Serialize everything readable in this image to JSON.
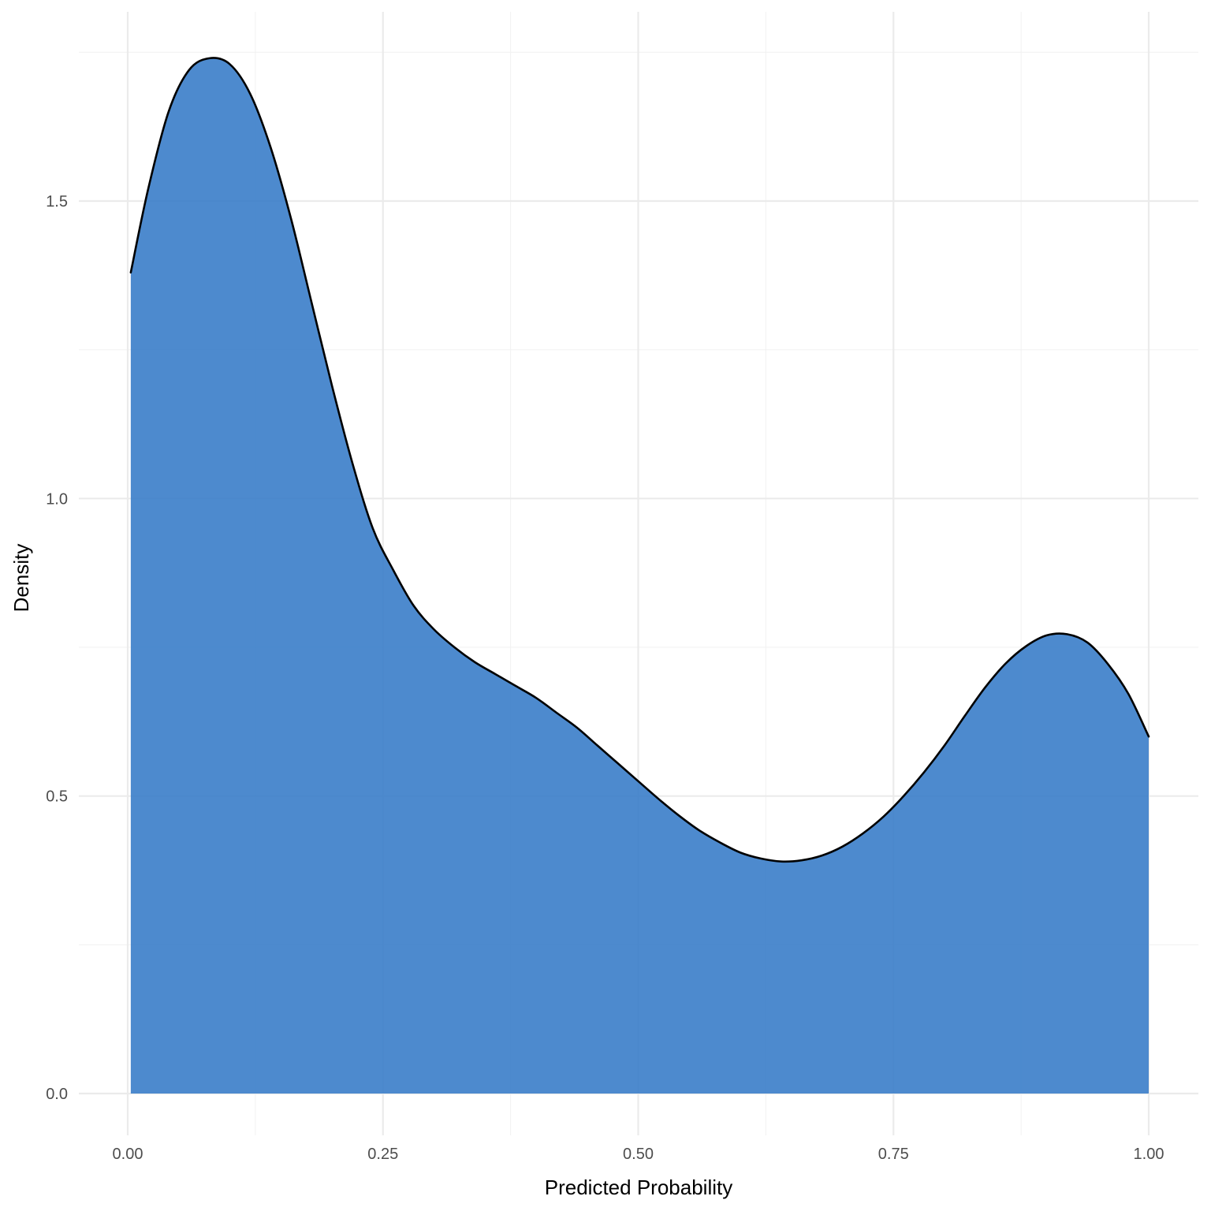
{
  "chart_data": {
    "type": "area",
    "title": "",
    "xlabel": "Predicted Probability",
    "ylabel": "Density",
    "xlim": [
      0.0,
      1.0
    ],
    "ylim": [
      0.0,
      1.75
    ],
    "x_ticks": [
      "0.00",
      "0.25",
      "0.50",
      "0.75",
      "1.00"
    ],
    "y_ticks": [
      "0.0",
      "0.5",
      "1.0",
      "1.5"
    ],
    "grid": true,
    "legend": "none",
    "fill_color": "#3a7dc9",
    "line_color": "#000000",
    "series": [
      {
        "x": [
          0.003,
          0.02,
          0.04,
          0.06,
          0.08,
          0.1,
          0.12,
          0.14,
          0.16,
          0.18,
          0.2,
          0.22,
          0.24,
          0.26,
          0.28,
          0.3,
          0.32,
          0.34,
          0.36,
          0.38,
          0.4,
          0.42,
          0.44,
          0.46,
          0.48,
          0.5,
          0.52,
          0.54,
          0.56,
          0.58,
          0.6,
          0.62,
          0.64,
          0.66,
          0.68,
          0.7,
          0.72,
          0.74,
          0.76,
          0.78,
          0.8,
          0.82,
          0.84,
          0.86,
          0.88,
          0.9,
          0.92,
          0.94,
          0.96,
          0.98,
          1.0
        ],
        "values": [
          1.38,
          1.52,
          1.65,
          1.72,
          1.74,
          1.73,
          1.68,
          1.59,
          1.47,
          1.33,
          1.19,
          1.06,
          0.95,
          0.88,
          0.82,
          0.78,
          0.75,
          0.725,
          0.705,
          0.685,
          0.665,
          0.64,
          0.615,
          0.585,
          0.555,
          0.525,
          0.495,
          0.467,
          0.442,
          0.422,
          0.405,
          0.395,
          0.39,
          0.392,
          0.4,
          0.415,
          0.437,
          0.465,
          0.5,
          0.54,
          0.585,
          0.635,
          0.683,
          0.723,
          0.752,
          0.77,
          0.772,
          0.758,
          0.722,
          0.672,
          0.6
        ]
      }
    ]
  }
}
